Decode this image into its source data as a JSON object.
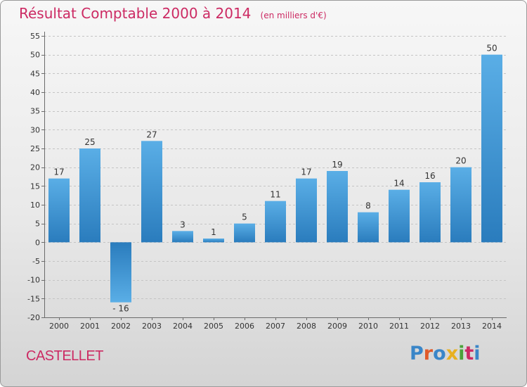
{
  "title": "Résultat Comptable 2000 à 2014",
  "subtitle": "(en milliers d'€)",
  "commune": "CASTELLET",
  "logo": "Proxiti",
  "colors": {
    "title": "#cc2a63",
    "bar_top": "#5aaee6",
    "bar_bottom": "#2a7cbd",
    "logo_letters": [
      "#3a86c8",
      "#e05a2a",
      "#3a86c8",
      "#e8b020",
      "#4aa23a",
      "#cc2a63",
      "#3a86c8"
    ]
  },
  "chart_data": {
    "type": "bar",
    "categories": [
      "2000",
      "2001",
      "2002",
      "2003",
      "2004",
      "2005",
      "2006",
      "2007",
      "2008",
      "2009",
      "2010",
      "2011",
      "2012",
      "2013",
      "2014"
    ],
    "values": [
      17,
      25,
      -16,
      27,
      3,
      1,
      5,
      11,
      17,
      19,
      8,
      14,
      16,
      20,
      50
    ],
    "ylim": [
      -20,
      55
    ],
    "yticks": [
      -20,
      -15,
      -10,
      -5,
      0,
      5,
      10,
      15,
      20,
      25,
      30,
      35,
      40,
      45,
      50,
      55
    ],
    "grid": "horizontal dashed",
    "data_labels": true
  }
}
